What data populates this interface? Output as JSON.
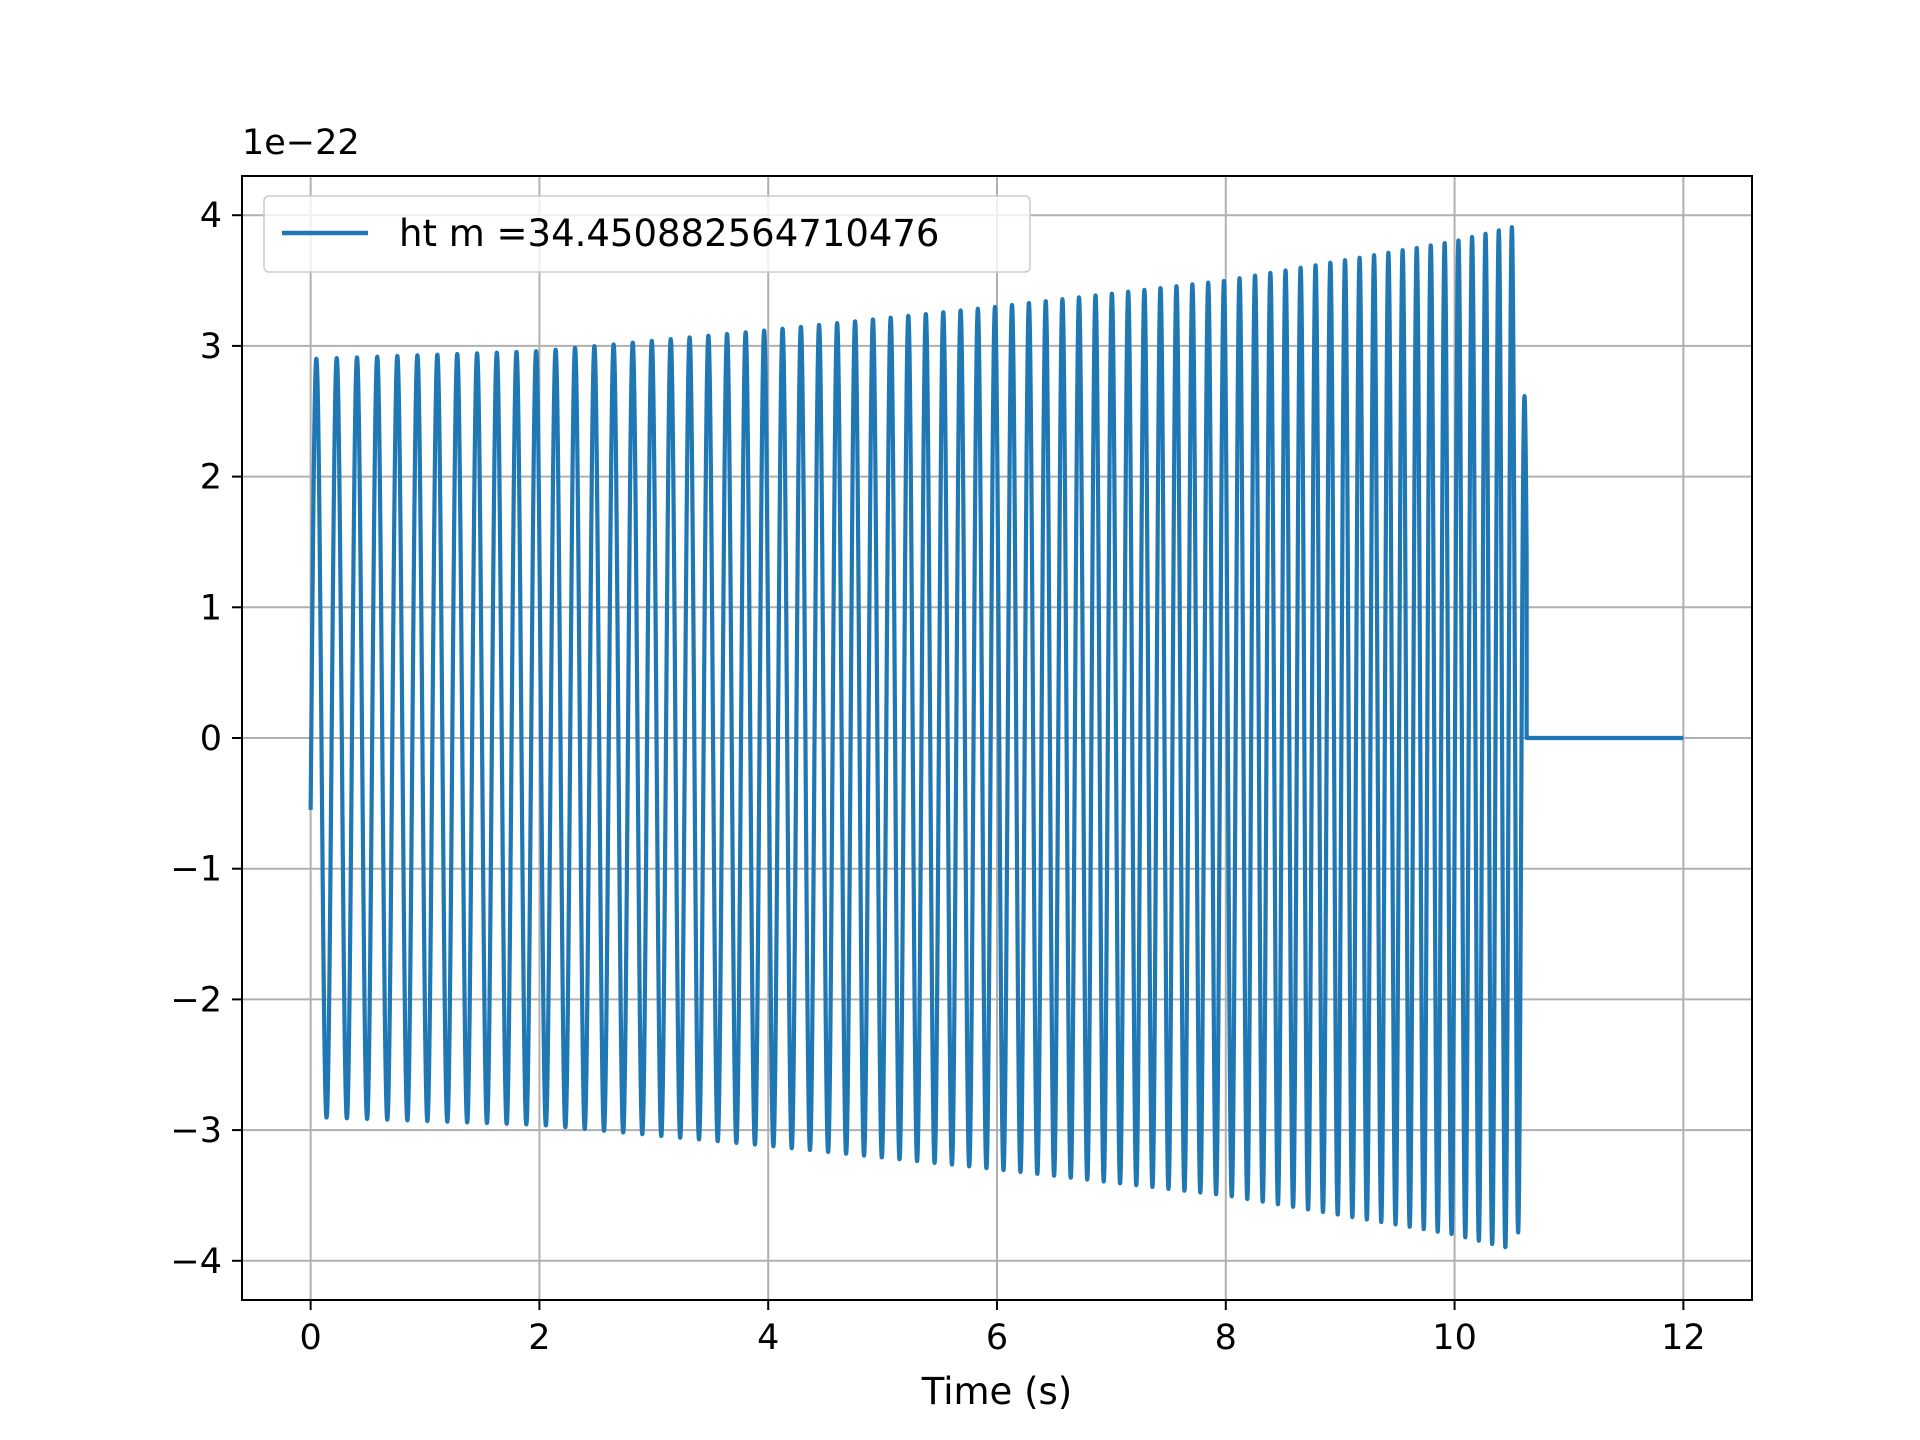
{
  "chart_data": {
    "type": "line",
    "title": "",
    "xlabel": "Time (s)",
    "ylabel": "",
    "y_offset_label": "1e−22",
    "xlim": [
      -0.6,
      12.6
    ],
    "ylim": [
      -4.3,
      4.3
    ],
    "x_ticks": [
      0,
      2,
      4,
      6,
      8,
      10,
      12
    ],
    "x_tick_labels": [
      "0",
      "2",
      "4",
      "6",
      "8",
      "10",
      "12"
    ],
    "y_ticks": [
      -4,
      -3,
      -2,
      -1,
      0,
      1,
      2,
      3,
      4
    ],
    "y_tick_labels": [
      "−4",
      "−3",
      "−2",
      "−1",
      "0",
      "1",
      "2",
      "3",
      "4"
    ],
    "grid": true,
    "legend_position": "top-left",
    "colors": {
      "series": "#1f77b4",
      "grid": "#b0b0b0",
      "axes": "#000000"
    },
    "series": [
      {
        "name": "ht m =34.450882564710476",
        "description_of_waveform": "",
        "t_start": 0.0,
        "t_merger": 10.63,
        "t_end": 12.0,
        "initial_value": -0.55,
        "envelope": {
          "t": [
            0.0,
            2.0,
            4.0,
            6.0,
            8.0,
            10.0,
            10.55,
            10.63
          ],
          "amplitude": [
            2.9,
            2.96,
            3.12,
            3.3,
            3.5,
            3.8,
            3.92,
            2.25
          ]
        },
        "frequency": {
          "t": [
            0.0,
            2.0,
            4.0,
            6.0,
            8.0,
            10.0,
            10.6
          ],
          "cycles_per_s": [
            5.6,
            5.85,
            6.2,
            6.7,
            7.3,
            8.3,
            8.9
          ]
        },
        "post_merger_value": 0.0
      }
    ]
  }
}
